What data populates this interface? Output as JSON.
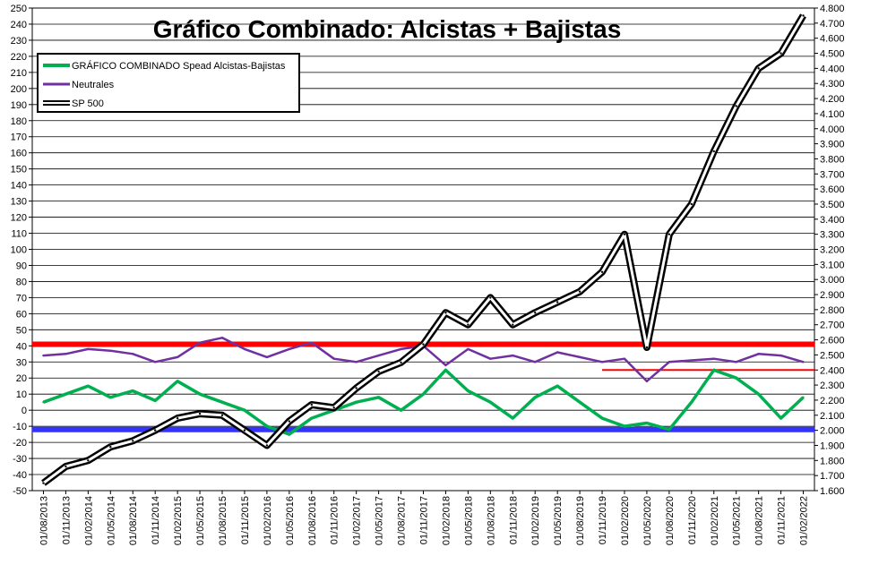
{
  "chart_data": {
    "type": "line",
    "title": "Gráfico Combinado: Alcistas + Bajistas",
    "y_left": {
      "range": [
        -50,
        250
      ],
      "ticks": [
        "250",
        "240",
        "230",
        "220",
        "210",
        "200",
        "190",
        "180",
        "170",
        "160",
        "150",
        "140",
        "130",
        "120",
        "110",
        "100",
        "90",
        "80",
        "70",
        "60",
        "50",
        "40",
        "30",
        "20",
        "10",
        "0",
        "-10",
        "-20",
        "-30",
        "-40",
        "-50"
      ]
    },
    "y_right": {
      "range": [
        1600,
        4800
      ],
      "ticks": [
        "4.800",
        "4.700",
        "4.600",
        "4.500",
        "4.400",
        "4.300",
        "4.200",
        "4.100",
        "4.000",
        "3.900",
        "3.800",
        "3.700",
        "3.600",
        "3.500",
        "3.400",
        "3.300",
        "3.200",
        "3.100",
        "3.000",
        "2.900",
        "2.800",
        "2.700",
        "2.600",
        "2.500",
        "2.400",
        "2.300",
        "2.200",
        "2.100",
        "2.000",
        "1.900",
        "1.800",
        "1.700",
        "1.600"
      ]
    },
    "x_ticks": [
      "01/08/2013",
      "01/11/2013",
      "01/02/2014",
      "01/05/2014",
      "01/08/2014",
      "01/11/2014",
      "01/02/2015",
      "01/05/2015",
      "01/08/2015",
      "01/11/2015",
      "01/02/2016",
      "01/05/2016",
      "01/08/2016",
      "01/11/2016",
      "01/02/2017",
      "01/05/2017",
      "01/08/2017",
      "01/11/2017",
      "01/02/2018",
      "01/05/2018",
      "01/08/2018",
      "01/11/2018",
      "01/02/2019",
      "01/05/2019",
      "01/08/2019",
      "01/11/2019",
      "01/02/2020",
      "01/05/2020",
      "01/08/2020",
      "01/11/2020",
      "01/02/2021",
      "01/05/2021",
      "01/08/2021",
      "01/11/2021",
      "01/02/2022"
    ],
    "series": [
      {
        "name": "GRÁFICO COMBINADO Spead Alcistas-Bajistas",
        "axis": "left",
        "color": "#00b050",
        "x": [
          0,
          1,
          2,
          3,
          4,
          5,
          6,
          7,
          8,
          9,
          10,
          11,
          12,
          13,
          14,
          15,
          16,
          17,
          18,
          19,
          20,
          21,
          22,
          23,
          24,
          25,
          26,
          27,
          28,
          29,
          30,
          31,
          32,
          33,
          34
        ],
        "values": [
          5,
          10,
          15,
          8,
          12,
          6,
          18,
          10,
          5,
          0,
          -10,
          -15,
          -5,
          0,
          5,
          8,
          0,
          10,
          25,
          12,
          5,
          -5,
          8,
          15,
          5,
          -5,
          -10,
          -8,
          -12,
          5,
          25,
          20,
          10,
          -5,
          8
        ]
      },
      {
        "name": "Neutrales",
        "axis": "left",
        "color": "#7030a0",
        "x": [
          0,
          1,
          2,
          3,
          4,
          5,
          6,
          7,
          8,
          9,
          10,
          11,
          12,
          13,
          14,
          15,
          16,
          17,
          18,
          19,
          20,
          21,
          22,
          23,
          24,
          25,
          26,
          27,
          28,
          29,
          30,
          31,
          32,
          33,
          34
        ],
        "values": [
          34,
          35,
          38,
          37,
          35,
          30,
          33,
          42,
          45,
          38,
          33,
          38,
          42,
          32,
          30,
          34,
          38,
          40,
          28,
          38,
          32,
          34,
          30,
          36,
          33,
          30,
          32,
          18,
          30,
          31,
          32,
          30,
          35,
          34,
          30
        ]
      },
      {
        "name": "SP 500",
        "axis": "right",
        "color": "#000000",
        "x": [
          0,
          1,
          2,
          3,
          4,
          5,
          6,
          7,
          8,
          9,
          10,
          11,
          12,
          13,
          14,
          15,
          16,
          17,
          18,
          19,
          20,
          21,
          22,
          23,
          24,
          25,
          26,
          27,
          28,
          29,
          30,
          31,
          32,
          33,
          34
        ],
        "values": [
          1650,
          1760,
          1800,
          1890,
          1930,
          2000,
          2080,
          2110,
          2100,
          2000,
          1900,
          2060,
          2170,
          2150,
          2280,
          2390,
          2450,
          2570,
          2780,
          2700,
          2880,
          2700,
          2780,
          2850,
          2920,
          3050,
          3300,
          2550,
          3300,
          3500,
          3850,
          4150,
          4400,
          4500,
          4750
        ]
      }
    ],
    "lines": [
      {
        "label": "",
        "color": "#ff0000",
        "y": 41,
        "axis": "left",
        "from_x": 0,
        "to_x": 34
      },
      {
        "label": "",
        "color": "#3333ff",
        "y": -12,
        "axis": "left",
        "from_x": 0,
        "to_x": 34
      },
      {
        "label": "",
        "color": "#ff0000",
        "y": 2400,
        "axis": "right",
        "from_x": 25,
        "to_x": 34
      }
    ],
    "legend": {
      "placement": "top-left",
      "items": [
        "GRÁFICO COMBINADO Spead Alcistas-Bajistas",
        "Neutrales",
        "SP 500"
      ]
    },
    "grid": true
  }
}
